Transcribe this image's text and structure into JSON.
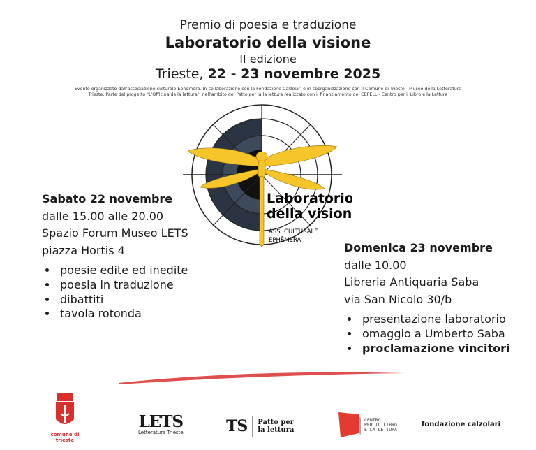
{
  "header": {
    "prize": "Premio di poesia e traduzione",
    "title": "Laboratorio della visione",
    "edition": "II edizione",
    "city": "Trieste,",
    "dates": "22 - 23 novembre 2025",
    "credits_line1": "Evento organizzato dall'associazione culturale Ephèmera. In collaborazione con la Fondazione Calzolari e in coorganizzazione con il Comune di Trieste - Museo della Letteratura",
    "credits_line2": "Trieste. Parte del progetto \"L'Officina della lettura\", nell'ambito del Patto per la la lettura realizzato con il finanziamento del CEPELL - Centro per il Libro e la Lettura"
  },
  "logo": {
    "title_line1": "Laboratorio",
    "title_line2": "della visione",
    "sub_line1": "ASS. CULTURALE",
    "sub_line2": "EPHĒMERA",
    "colors": {
      "wing": "#f5c52a",
      "dark": "#2b3442"
    }
  },
  "saturday": {
    "heading": "Sabato 22 novembre",
    "time": "dalle 15.00 alle 20.00",
    "venue": "Spazio Forum Museo LETS",
    "address": "piazza Hortis 4",
    "items": [
      "poesie edite ed inedite",
      "poesia in traduzione",
      "dibattiti",
      "tavola rotonda"
    ]
  },
  "sunday": {
    "heading": "Domenica 23 novembre",
    "time": "dalle 10.00",
    "venue": "Libreria Antiquaria Saba",
    "address": "via San Nicolo 30/b",
    "items": [
      "presentazione laboratorio",
      "omaggio a Umberto Saba",
      "proclamazione vincitori"
    ]
  },
  "sponsors": {
    "comune": "comune di trieste",
    "lets": "LETS",
    "lets_sub": "Letteratura Trieste",
    "ts": "TS",
    "patto": "Patto per",
    "patto2": "la lettura",
    "cepell1": "CENTRO",
    "cepell2": "PER IL LIBRO",
    "cepell3": "E LA LETTURA",
    "calzolari": "fondazione calzolari"
  },
  "accent_color": "#d8302e"
}
